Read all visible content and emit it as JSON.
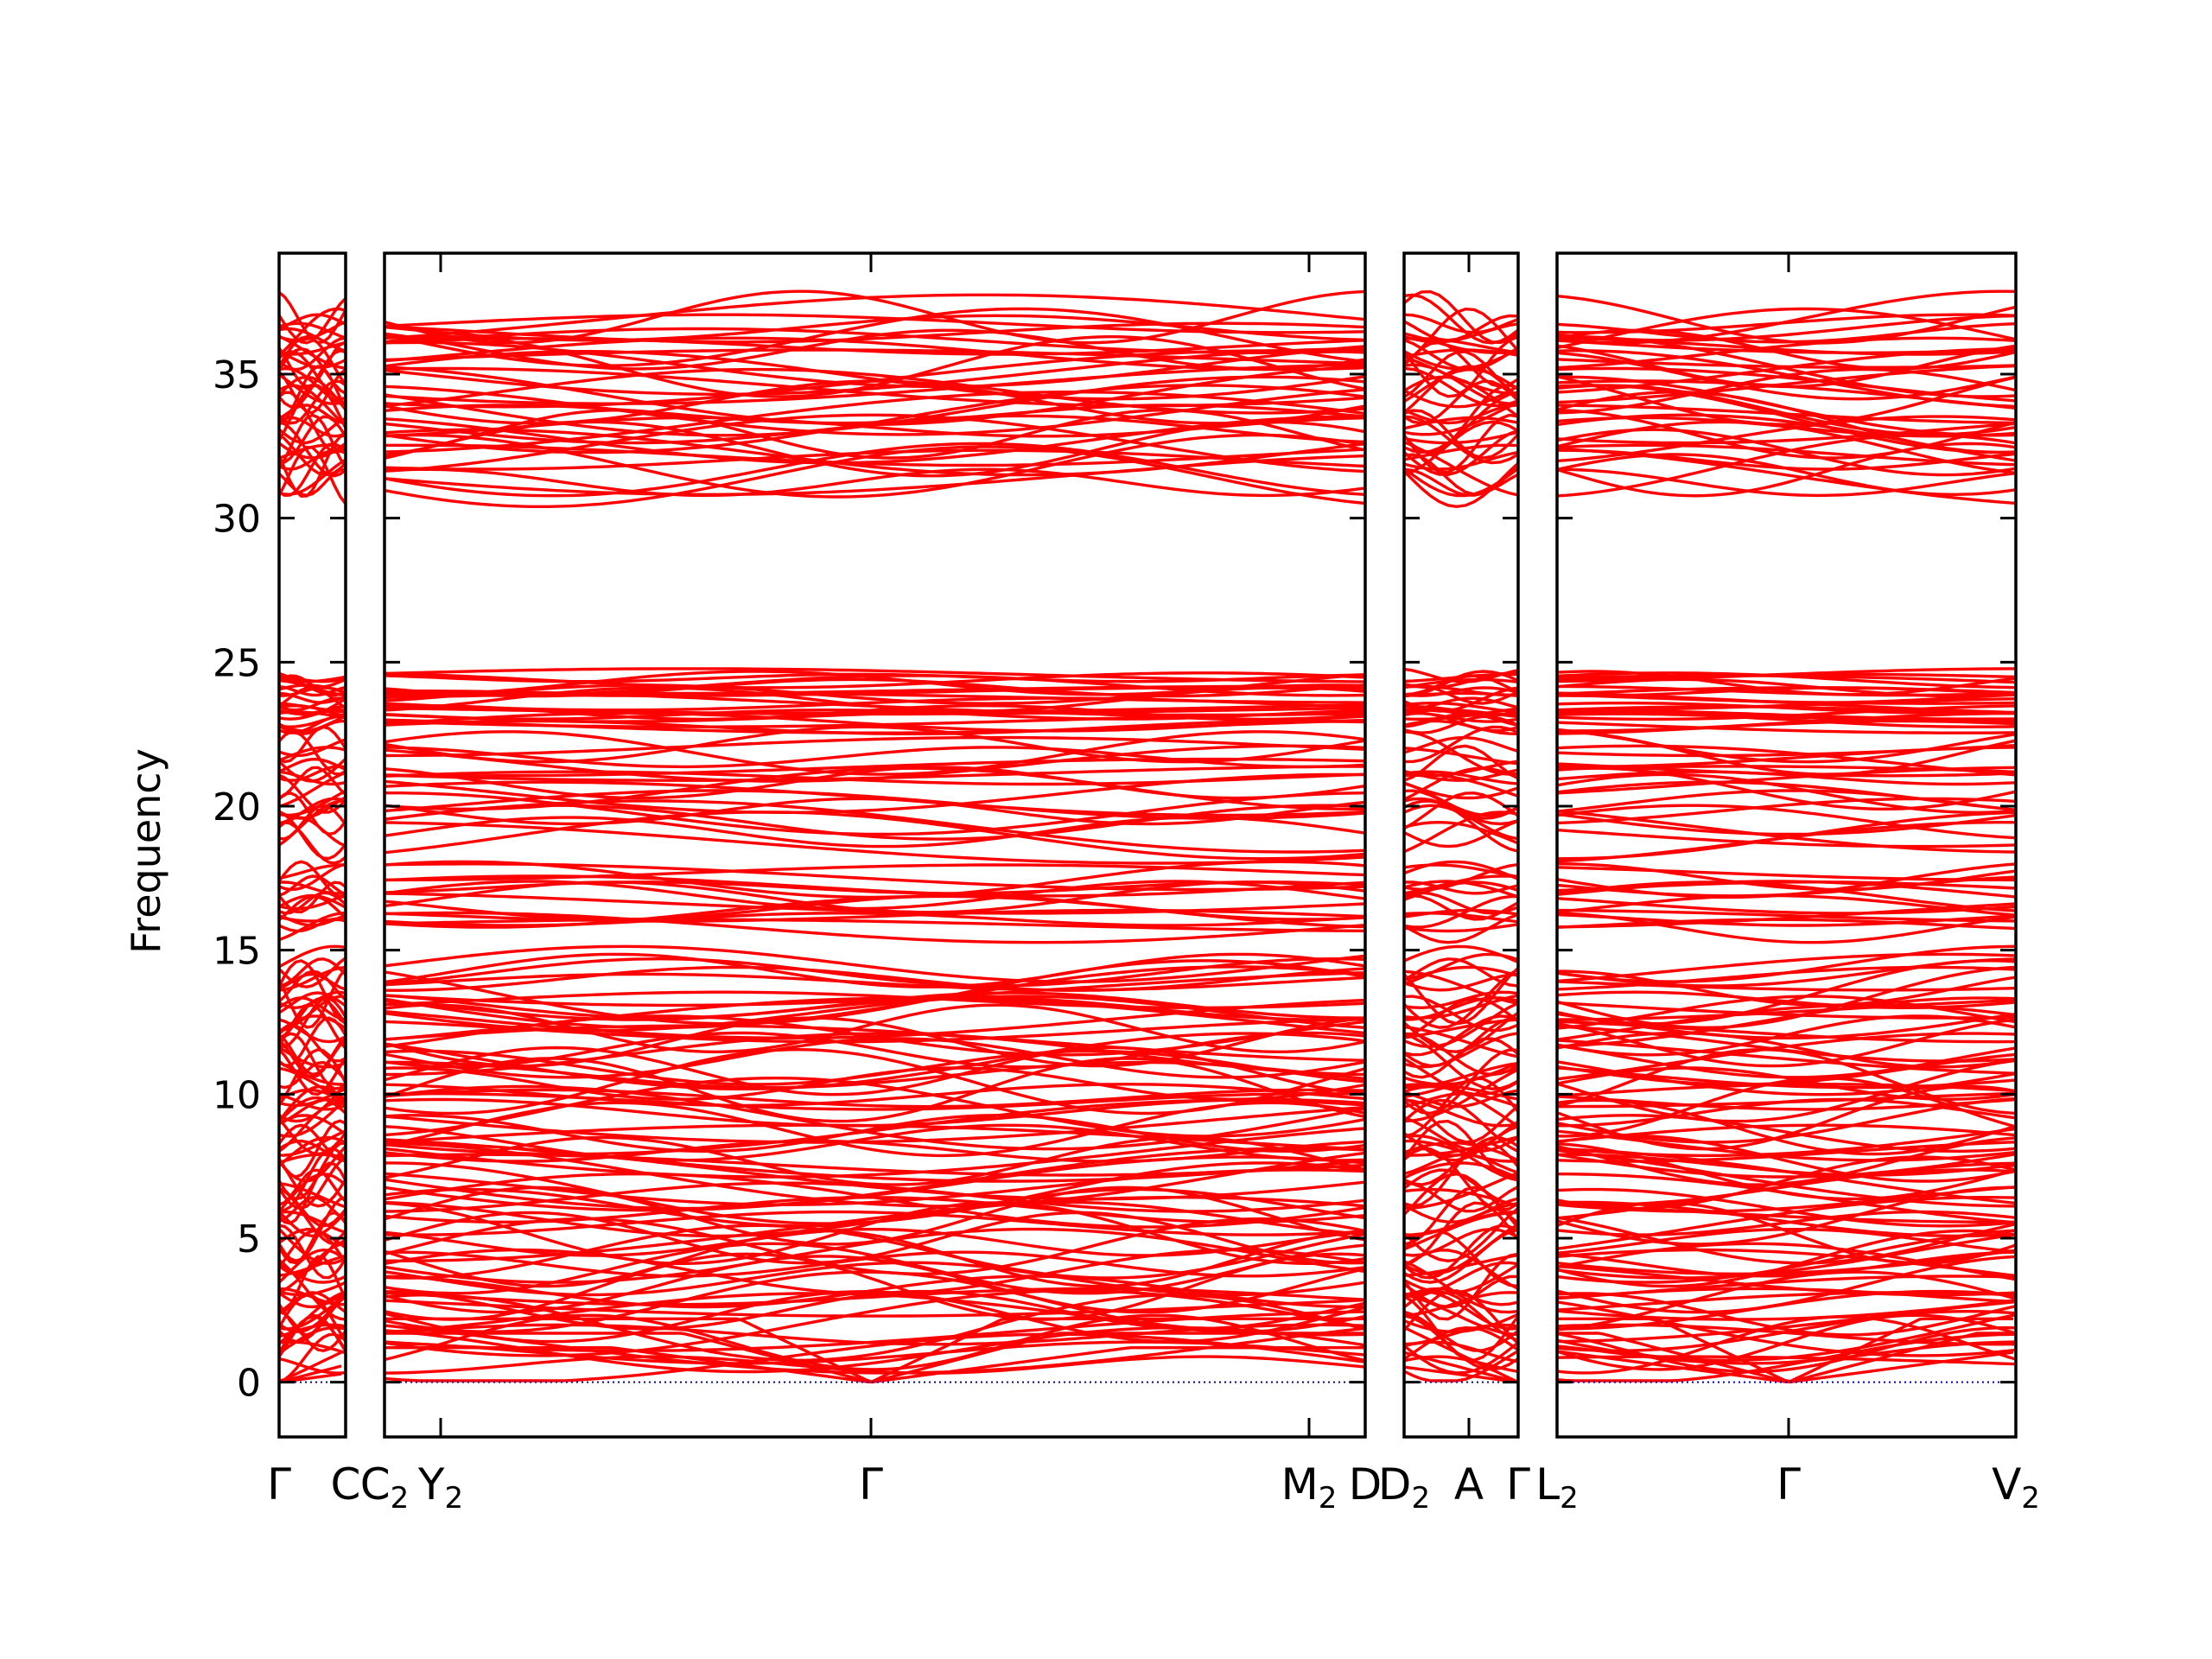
{
  "chart_data": {
    "type": "line",
    "title": "",
    "ylabel": "Frequency",
    "ylim": [
      -1.9,
      39.2
    ],
    "yticks": [
      0,
      5,
      10,
      15,
      20,
      25,
      30,
      35
    ],
    "line_color": "#ff0000",
    "zero_line_color": "#0000cc",
    "grid": false,
    "panels": [
      {
        "name": "panel-1",
        "path": [
          {
            "label": "Γ",
            "sub": ""
          },
          {
            "label": "C",
            "sub": ""
          }
        ]
      },
      {
        "name": "panel-2",
        "path": [
          {
            "label": "C",
            "sub": "2"
          },
          {
            "label": "Y",
            "sub": "2"
          },
          {
            "label": "Γ",
            "sub": ""
          },
          {
            "label": "M",
            "sub": "2"
          },
          {
            "label": "D",
            "sub": ""
          }
        ]
      },
      {
        "name": "panel-3",
        "path": [
          {
            "label": "D",
            "sub": "2"
          },
          {
            "label": "A",
            "sub": ""
          },
          {
            "label": "Γ",
            "sub": ""
          }
        ]
      },
      {
        "name": "panel-4",
        "path": [
          {
            "label": "L",
            "sub": "2"
          },
          {
            "label": "Γ",
            "sub": ""
          },
          {
            "label": "V",
            "sub": "2"
          }
        ]
      }
    ],
    "bands": {
      "low_continuum": [
        0,
        14.8
      ],
      "gap_1": [
        14.8,
        15.6
      ],
      "middle_group": [
        15.6,
        17.9
      ],
      "middle_group_2": [
        18.6,
        22.4
      ],
      "upper_group": [
        22.6,
        24.8
      ],
      "gap_2": [
        24.8,
        31.0
      ],
      "top_group": [
        31.0,
        37.3
      ]
    }
  }
}
